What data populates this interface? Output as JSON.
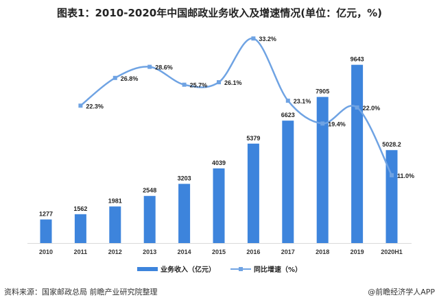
{
  "chart_data": {
    "type": "bar+line",
    "title": "图表1：2010-2020年中国邮政业务收入及增速情况(单位：亿元，%)",
    "categories": [
      "2010",
      "2011",
      "2012",
      "2013",
      "2014",
      "2015",
      "2016",
      "2017",
      "2018",
      "2019",
      "2020H1"
    ],
    "series": [
      {
        "name": "业务收入（亿元）",
        "type": "bar",
        "axis": "left",
        "color": "#3d84dc",
        "values": [
          1277,
          1562,
          1981,
          2548,
          3203,
          4039,
          5379,
          6623,
          7905,
          9643,
          5028.2
        ],
        "labels": [
          "1277",
          "1562",
          "1981",
          "2548",
          "3203",
          "4039",
          "5379",
          "6623",
          "7905",
          "9643",
          "5028.2"
        ]
      },
      {
        "name": "同比增速（%）",
        "type": "line",
        "axis": "right",
        "color": "#6fa3e3",
        "smooth": true,
        "values": [
          null,
          22.3,
          26.8,
          28.6,
          25.7,
          26.1,
          33.2,
          23.1,
          19.4,
          22.0,
          11.0
        ],
        "labels": [
          "",
          "22.3%",
          "26.8%",
          "28.6%",
          "25.7%",
          "26.1%",
          "33.2%",
          "23.1%",
          "19.4%",
          "22.0%",
          "11.0%"
        ]
      }
    ],
    "ylim_left": [
      0,
      10000
    ],
    "ylim_right": [
      0,
      30
    ],
    "axes_visible": false,
    "grid": false,
    "legend": "bottom"
  },
  "footer": {
    "source": "资料来源：国家邮政总局 前瞻产业研究院整理",
    "credit": "@前瞻经济学人APP"
  }
}
